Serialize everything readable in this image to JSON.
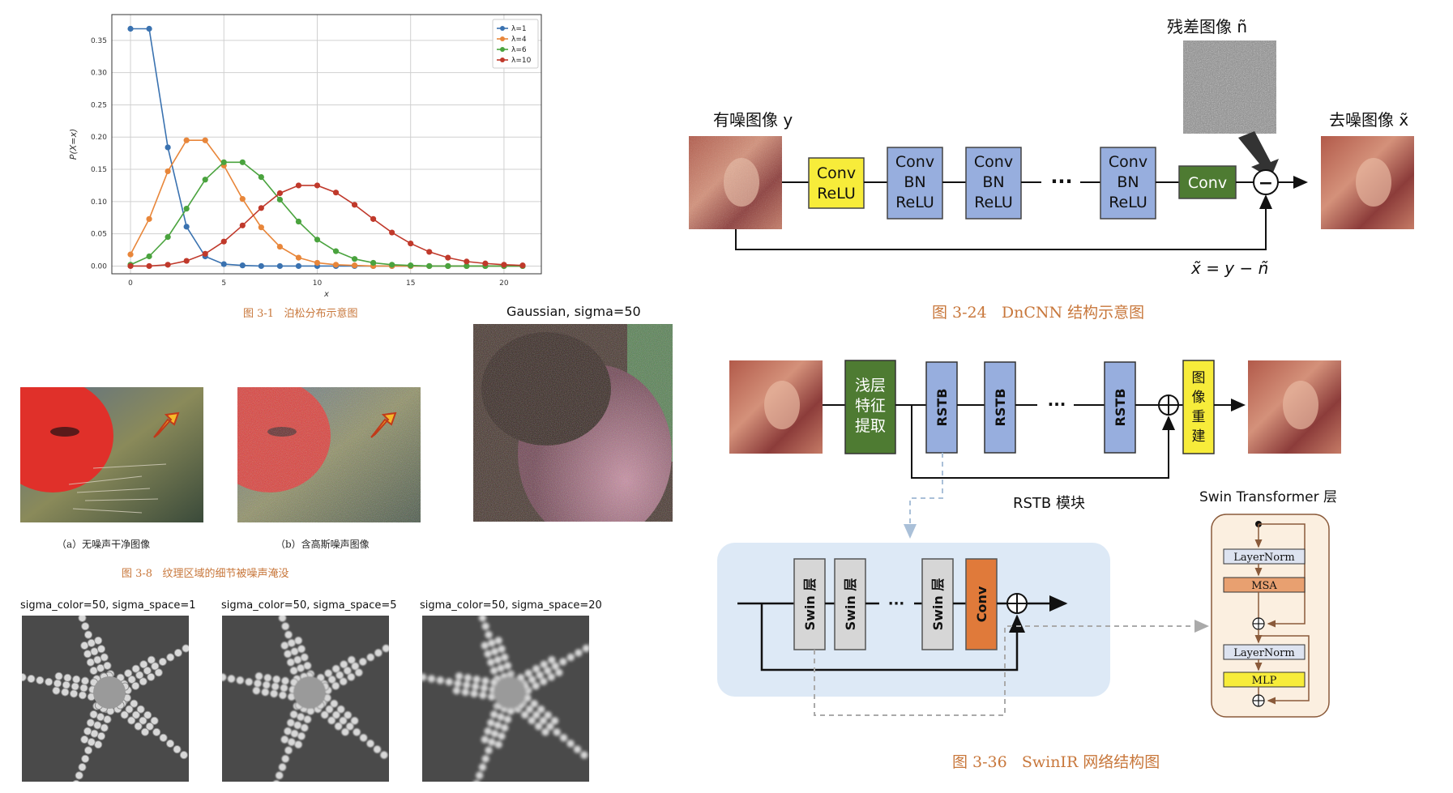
{
  "poisson": {
    "caption": "图 3-1   泊松分布示意图",
    "chart_data": {
      "type": "line",
      "xlabel": "x",
      "ylabel": "P(X=x)",
      "xlim": [
        -1,
        22
      ],
      "ylim": [
        -0.012,
        0.39
      ],
      "xticks": [
        0,
        5,
        10,
        15,
        20
      ],
      "yticks": [
        0.0,
        0.05,
        0.1,
        0.15,
        0.2,
        0.25,
        0.3,
        0.35
      ],
      "ytick_labels": [
        "0.00",
        "0.05",
        "0.10",
        "0.15",
        "0.20",
        "0.25",
        "0.30",
        "0.35"
      ],
      "xtick_labels": [
        "0",
        "5",
        "10",
        "15",
        "20"
      ],
      "legend_position": "top-right",
      "grid": true,
      "x": [
        0,
        1,
        2,
        3,
        4,
        5,
        6,
        7,
        8,
        9,
        10,
        11,
        12,
        13,
        14,
        15,
        16,
        17,
        18,
        19,
        20,
        21
      ],
      "series": [
        {
          "name": "λ=1",
          "color": "#3a72b0",
          "values": [
            0.368,
            0.368,
            0.184,
            0.061,
            0.015,
            0.003,
            0.001,
            0,
            0,
            0,
            0,
            0,
            0,
            0,
            0,
            0,
            0,
            0,
            0,
            0,
            0,
            0
          ]
        },
        {
          "name": "λ=4",
          "color": "#e8863a",
          "values": [
            0.018,
            0.073,
            0.147,
            0.195,
            0.195,
            0.156,
            0.104,
            0.06,
            0.03,
            0.013,
            0.005,
            0.002,
            0.001,
            0,
            0,
            0,
            0,
            0,
            0,
            0,
            0,
            0
          ]
        },
        {
          "name": "λ=6",
          "color": "#4aa33e",
          "values": [
            0.002,
            0.015,
            0.045,
            0.089,
            0.134,
            0.161,
            0.161,
            0.138,
            0.103,
            0.069,
            0.041,
            0.023,
            0.011,
            0.005,
            0.002,
            0.001,
            0,
            0,
            0,
            0,
            0,
            0
          ]
        },
        {
          "name": "λ=10",
          "color": "#c0392b",
          "values": [
            0,
            0,
            0.002,
            0.008,
            0.019,
            0.038,
            0.063,
            0.09,
            0.113,
            0.125,
            0.125,
            0.114,
            0.095,
            0.073,
            0.052,
            0.035,
            0.022,
            0.013,
            0.007,
            0.004,
            0.002,
            0.001
          ]
        }
      ]
    }
  },
  "dncnn": {
    "residual_label": "残差图像 ñ",
    "noisy_label": "有噪图像 y",
    "denoised_label": "去噪图像 x̃",
    "block1": [
      "Conv",
      "ReLU"
    ],
    "block2": [
      "Conv",
      "BN",
      "ReLU"
    ],
    "block3": [
      "Conv",
      "BN",
      "ReLU"
    ],
    "block4": [
      "Conv",
      "BN",
      "ReLU"
    ],
    "dots": "···",
    "conv_last": "Conv",
    "minus": "−",
    "formula": "x̃ = y − ñ",
    "caption": "图 3-24   DnCNN 结构示意图"
  },
  "gaussian": {
    "title": "Gaussian, sigma=50"
  },
  "texture": {
    "sub_a": "（a）无噪声干净图像",
    "sub_b": "（b）含高斯噪声图像",
    "caption": "图 3-8   纹理区域的细节被噪声淹没"
  },
  "bilateral": {
    "labels": [
      "sigma_color=50, sigma_space=1",
      "sigma_color=50, sigma_space=5",
      "sigma_color=50, sigma_space=20"
    ]
  },
  "swinir": {
    "shallow": [
      "浅层",
      "特征",
      "提取"
    ],
    "rstb": "RSTB",
    "dots": "···",
    "recon": [
      "图",
      "像",
      "重",
      "建"
    ],
    "rstb_module": "RSTB 模块",
    "swin_layer": "Swin 层",
    "conv": "Conv",
    "swin_transformer_title": "Swin Transformer 层",
    "layernorm": "LayerNorm",
    "msa": "MSA",
    "mlp": "MLP",
    "caption": "图 3-36   SwinIR 网络结构图"
  },
  "colors": {
    "caption": "#c8773b",
    "yellow": "#f7ec3a",
    "blue": "#97aede",
    "green": "#4e7b32",
    "orange": "#e07a3a",
    "gray": "#d6d6d6",
    "panel": "#dde9f6"
  }
}
